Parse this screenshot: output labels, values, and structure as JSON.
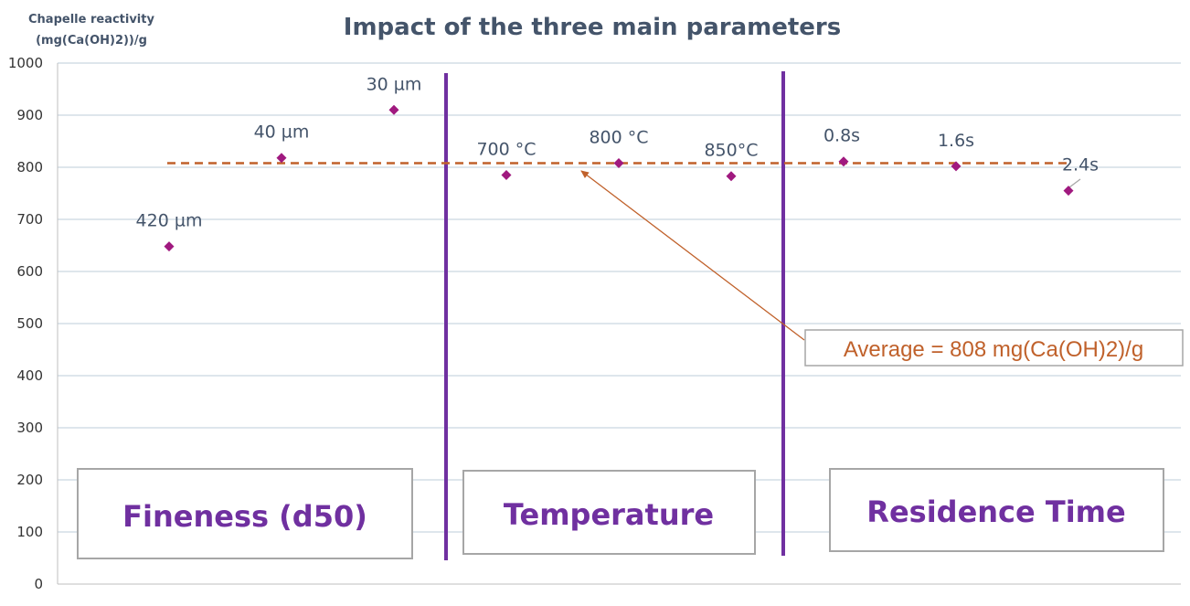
{
  "chart_data": {
    "type": "scatter",
    "title": "Impact of the three main parameters",
    "ylabel": "Chapelle reactivity (mg(Ca(OH)2))/g",
    "ylabel_lines": [
      "Chapelle reactivity",
      "(mg(Ca(OH)2))/g"
    ],
    "xlabel": "",
    "ylim": [
      0,
      1000
    ],
    "yticks": [
      0,
      100,
      200,
      300,
      400,
      500,
      600,
      700,
      800,
      900,
      1000
    ],
    "grid": true,
    "points": [
      {
        "x": 1,
        "y": 648,
        "label": "420 µm",
        "group": "Fineness (d50)"
      },
      {
        "x": 2,
        "y": 818,
        "label": "40 µm",
        "group": "Fineness (d50)"
      },
      {
        "x": 3,
        "y": 910,
        "label": "30 µm",
        "group": "Fineness (d50)"
      },
      {
        "x": 4,
        "y": 785,
        "label": "700 °C",
        "group": "Temperature"
      },
      {
        "x": 5,
        "y": 808,
        "label": "800 °C",
        "group": "Temperature"
      },
      {
        "x": 6,
        "y": 783,
        "label": "850°C",
        "group": "Temperature"
      },
      {
        "x": 7,
        "y": 811,
        "label": "0.8s",
        "group": "Residence Time"
      },
      {
        "x": 8,
        "y": 802,
        "label": "1.6s",
        "group": "Residence Time"
      },
      {
        "x": 9,
        "y": 755,
        "label": "2.4s",
        "group": "Residence Time"
      }
    ],
    "average": {
      "value": 808,
      "label": "Average = 808 mg(Ca(OH)2)/g"
    },
    "sections": [
      "Fineness (d50)",
      "Temperature",
      "Residence Time"
    ],
    "colors": {
      "marker": "#A0197F",
      "average_line": "#C0612B",
      "divider": "#7030A0",
      "section_text": "#7030A0",
      "grid": "#C9D7E1",
      "title": "#44546A"
    }
  }
}
